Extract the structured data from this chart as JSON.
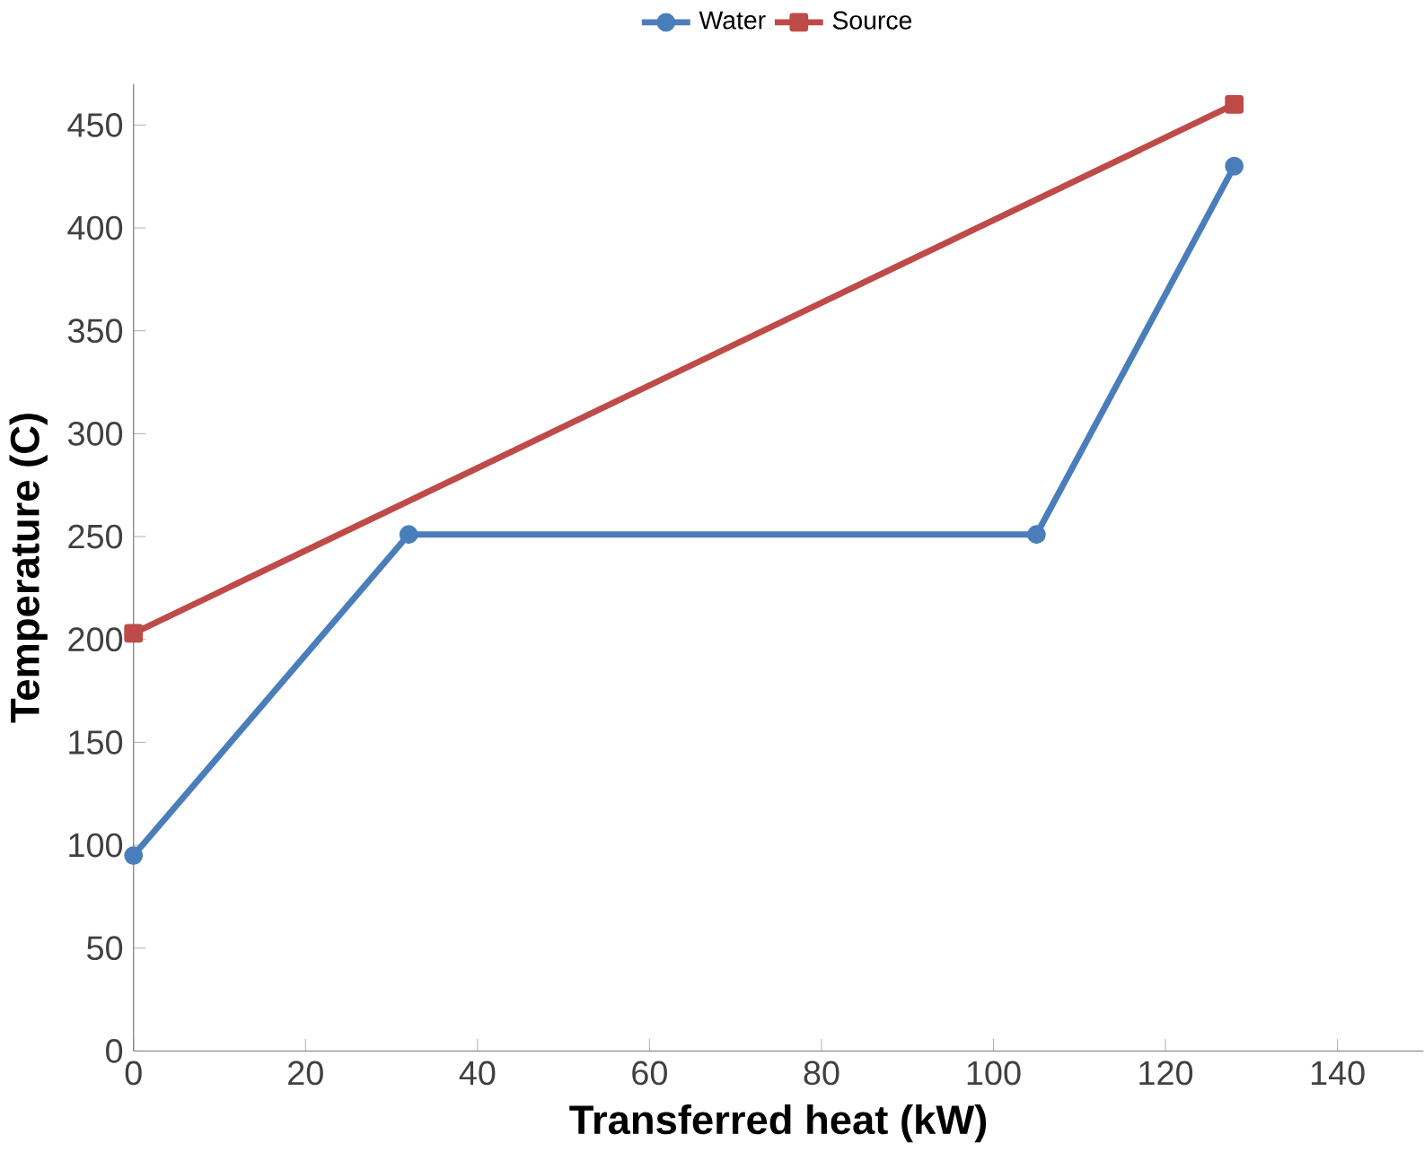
{
  "chart_data": {
    "type": "line",
    "xlabel": "Transferred heat (kW)",
    "ylabel": "Temperature (C)",
    "xlim": [
      0,
      150
    ],
    "xticks": [
      0,
      20,
      40,
      60,
      80,
      100,
      120,
      140
    ],
    "ylim": [
      0,
      470
    ],
    "yticks": [
      0,
      50,
      100,
      150,
      200,
      250,
      300,
      350,
      400,
      450
    ],
    "grid": false,
    "legend": "top",
    "series": [
      {
        "name": "Water",
        "color": "#4a7ebb",
        "marker": "circle",
        "x": [
          0,
          32,
          105,
          128
        ],
        "values": [
          95,
          251,
          251,
          430
        ]
      },
      {
        "name": "Source",
        "color": "#be4b48",
        "marker": "square",
        "x": [
          0,
          128
        ],
        "values": [
          203,
          460
        ]
      }
    ]
  }
}
